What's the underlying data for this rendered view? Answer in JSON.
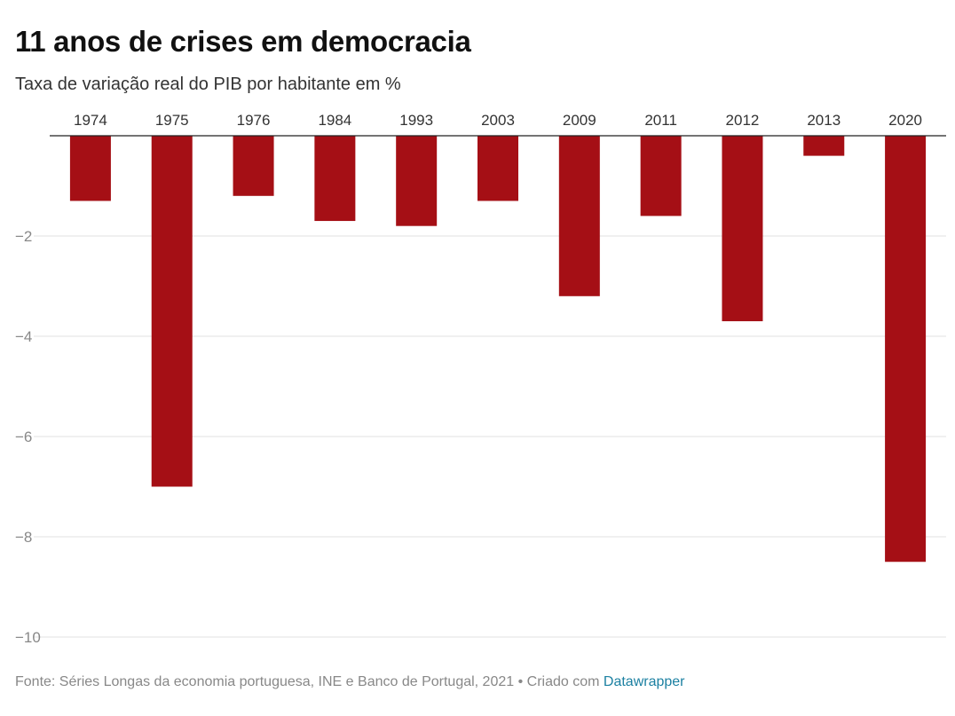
{
  "header": {
    "title": "11 anos de crises em democracia",
    "subtitle": "Taxa de variação real do PIB por habitante em %"
  },
  "footer": {
    "source_text": "Fonte: Séries Longas da economia portuguesa, INE e Banco de Portugal, 2021 • Criado com ",
    "tool_link": "Datawrapper"
  },
  "colors": {
    "bar": "#a50f15",
    "grid": "#e2e2e2",
    "axis": "#222222",
    "tick_label": "#888888"
  },
  "chart_data": {
    "type": "bar",
    "orientation": "vertical",
    "categories": [
      "1974",
      "1975",
      "1976",
      "1984",
      "1993",
      "2003",
      "2009",
      "2011",
      "2012",
      "2013",
      "2020"
    ],
    "values": [
      -1.3,
      -7.0,
      -1.2,
      -1.7,
      -1.8,
      -1.3,
      -3.2,
      -1.6,
      -3.7,
      -0.4,
      -8.5
    ],
    "title": "11 anos de crises em democracia",
    "subtitle": "Taxa de variação real do PIB por habitante em %",
    "xlabel": "",
    "ylabel": "",
    "ylim": [
      -10,
      0
    ],
    "yticks": [
      -2,
      -4,
      -6,
      -8,
      -10
    ],
    "ytick_labels": [
      "−2",
      "−4",
      "−6",
      "−8",
      "−10"
    ],
    "category_labels_position": "top",
    "grid": true,
    "legend": false
  }
}
